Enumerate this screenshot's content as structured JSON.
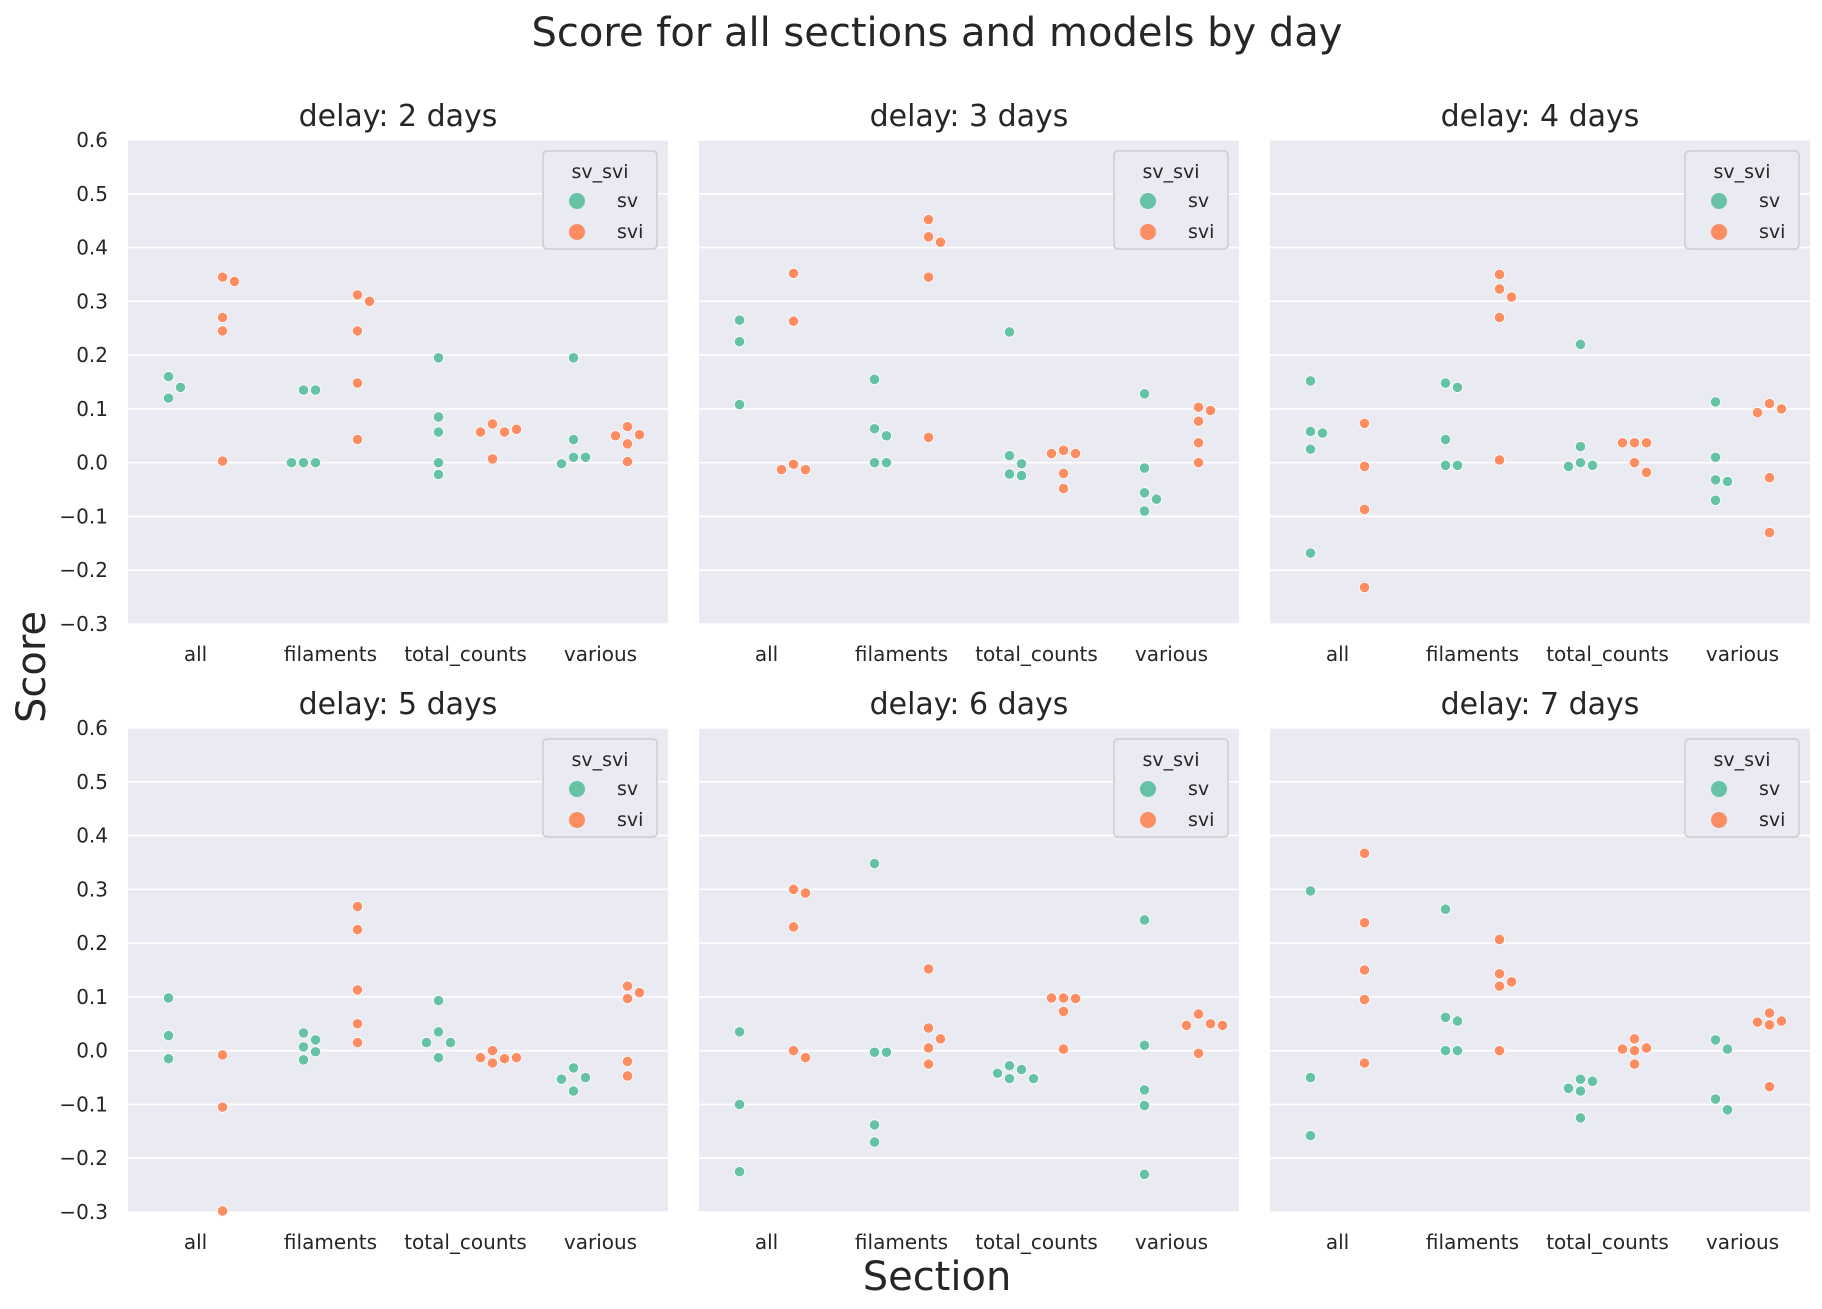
{
  "chart_data": {
    "type": "scatter",
    "title": "Score for all sections and models by day",
    "xlabel": "Section",
    "ylabel": "Score",
    "ylim": [
      -0.3,
      0.6
    ],
    "yticks": [
      "0.6",
      "0.5",
      "0.4",
      "0.3",
      "0.2",
      "0.1",
      "0.0",
      "−0.1",
      "−0.2",
      "−0.3"
    ],
    "ytick_values": [
      0.6,
      0.5,
      0.4,
      0.3,
      0.2,
      0.1,
      0.0,
      -0.1,
      -0.2,
      -0.3
    ],
    "categories": [
      "all",
      "filaments",
      "total_counts",
      "various"
    ],
    "legend": {
      "title": "sv_svi",
      "placement": "top-right",
      "entries": [
        {
          "name": "sv",
          "color": "#66c2a5"
        },
        {
          "name": "svi",
          "color": "#fc8d62"
        }
      ]
    },
    "grid": true,
    "panels": [
      {
        "title": "delay: 2 days",
        "series": [
          {
            "name": "sv",
            "values": {
              "all": [
                0.16,
                0.14,
                0.12
              ],
              "filaments": [
                0.135,
                0.135,
                0.0,
                0.0,
                0.0
              ],
              "total_counts": [
                0.195,
                0.085,
                0.057,
                0.0,
                -0.022
              ],
              "various": [
                0.195,
                0.043,
                0.01,
                0.01,
                -0.002
              ]
            }
          },
          {
            "name": "svi",
            "values": {
              "all": [
                0.345,
                0.337,
                0.27,
                0.245,
                0.003
              ],
              "filaments": [
                0.312,
                0.3,
                0.245,
                0.148,
                0.043
              ],
              "total_counts": [
                0.072,
                0.057,
                0.057,
                0.062,
                0.007
              ],
              "various": [
                0.067,
                0.052,
                0.05,
                0.035,
                0.002
              ]
            }
          }
        ]
      },
      {
        "title": "delay: 3 days",
        "series": [
          {
            "name": "sv",
            "values": {
              "all": [
                0.265,
                0.225,
                0.108
              ],
              "filaments": [
                0.155,
                0.063,
                0.05,
                0.0,
                0.0
              ],
              "total_counts": [
                0.243,
                0.013,
                -0.002,
                -0.021,
                -0.024
              ],
              "various": [
                0.128,
                -0.01,
                -0.056,
                -0.068,
                -0.09
              ]
            }
          },
          {
            "name": "svi",
            "values": {
              "all": [
                0.352,
                0.263,
                -0.003,
                -0.013,
                -0.013
              ],
              "filaments": [
                0.452,
                0.42,
                0.41,
                0.345,
                0.047
              ],
              "total_counts": [
                0.023,
                0.017,
                0.017,
                -0.02,
                -0.048
              ],
              "various": [
                0.103,
                0.097,
                0.077,
                0.037,
                0.0
              ]
            }
          }
        ]
      },
      {
        "title": "delay: 4 days",
        "series": [
          {
            "name": "sv",
            "values": {
              "all": [
                0.152,
                0.058,
                0.055,
                0.025,
                -0.168
              ],
              "filaments": [
                0.148,
                0.14,
                0.043,
                -0.005,
                -0.005
              ],
              "total_counts": [
                0.22,
                0.03,
                0.0,
                -0.005,
                -0.007
              ],
              "various": [
                0.113,
                0.01,
                -0.032,
                -0.035,
                -0.07
              ]
            }
          },
          {
            "name": "svi",
            "values": {
              "all": [
                0.073,
                -0.007,
                -0.087,
                -0.232
              ],
              "filaments": [
                0.35,
                0.323,
                0.308,
                0.27,
                0.005
              ],
              "total_counts": [
                0.037,
                0.037,
                0.037,
                0.0,
                -0.018
              ],
              "various": [
                0.11,
                0.1,
                0.093,
                -0.028,
                -0.13
              ]
            }
          }
        ]
      },
      {
        "title": "delay: 5 days",
        "series": [
          {
            "name": "sv",
            "values": {
              "all": [
                0.098,
                0.028,
                -0.015
              ],
              "filaments": [
                0.033,
                0.02,
                0.007,
                -0.002,
                -0.017
              ],
              "total_counts": [
                0.093,
                0.035,
                0.015,
                0.015,
                -0.013
              ],
              "various": [
                -0.032,
                -0.05,
                -0.053,
                -0.075
              ]
            }
          },
          {
            "name": "svi",
            "values": {
              "all": [
                -0.008,
                -0.105,
                -0.298
              ],
              "filaments": [
                0.268,
                0.225,
                0.113,
                0.05,
                0.015
              ],
              "total_counts": [
                0.0,
                -0.015,
                -0.013,
                -0.013,
                -0.023
              ],
              "various": [
                0.12,
                0.108,
                0.097,
                -0.02,
                -0.047
              ]
            }
          }
        ]
      },
      {
        "title": "delay: 6 days",
        "series": [
          {
            "name": "sv",
            "values": {
              "all": [
                0.035,
                -0.1,
                -0.225
              ],
              "filaments": [
                0.348,
                -0.003,
                -0.003,
                -0.138,
                -0.17
              ],
              "total_counts": [
                -0.028,
                -0.035,
                -0.042,
                -0.052,
                -0.052
              ],
              "various": [
                0.243,
                0.01,
                -0.073,
                -0.102,
                -0.23
              ]
            }
          },
          {
            "name": "svi",
            "values": {
              "all": [
                0.3,
                0.293,
                0.23,
                0.0,
                -0.013
              ],
              "filaments": [
                0.152,
                0.042,
                0.022,
                0.005,
                -0.025
              ],
              "total_counts": [
                0.098,
                0.097,
                0.098,
                0.073,
                0.003
              ],
              "various": [
                0.068,
                0.05,
                0.047,
                0.047,
                -0.005
              ]
            }
          }
        ]
      },
      {
        "title": "delay: 7 days",
        "series": [
          {
            "name": "sv",
            "values": {
              "all": [
                0.297,
                -0.05,
                -0.158
              ],
              "filaments": [
                0.263,
                0.062,
                0.055,
                0.0,
                0.0
              ],
              "total_counts": [
                -0.053,
                -0.057,
                -0.07,
                -0.075,
                -0.125
              ],
              "various": [
                0.02,
                0.003,
                -0.09,
                -0.11
              ]
            }
          },
          {
            "name": "svi",
            "values": {
              "all": [
                0.367,
                0.238,
                0.15,
                0.095,
                -0.023
              ],
              "filaments": [
                0.207,
                0.143,
                0.128,
                0.12,
                0.0
              ],
              "total_counts": [
                0.022,
                0.005,
                0.003,
                0.0,
                -0.025
              ],
              "various": [
                0.07,
                0.055,
                0.053,
                0.048,
                -0.067
              ]
            }
          }
        ]
      }
    ]
  }
}
